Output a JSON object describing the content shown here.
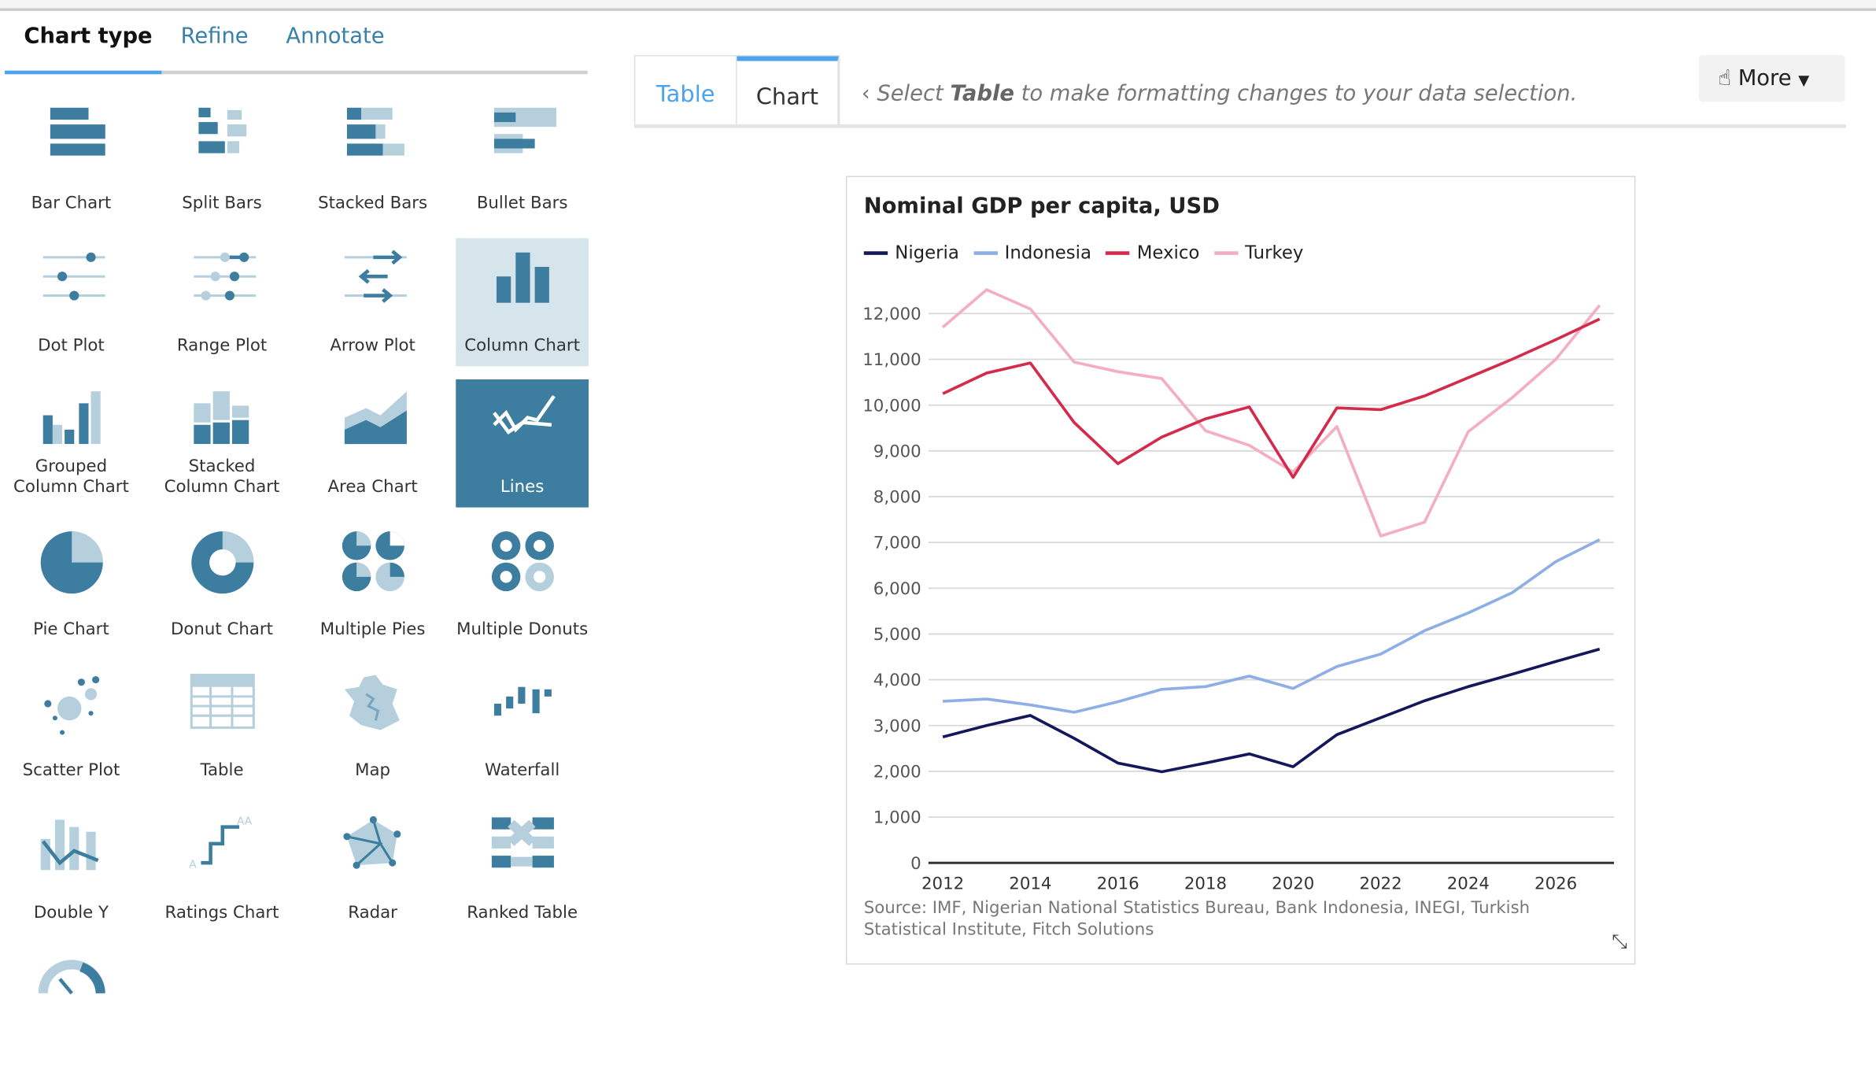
{
  "left_tabs": [
    {
      "label": "Chart type",
      "active": true
    },
    {
      "label": "Refine",
      "active": false
    },
    {
      "label": "Annotate",
      "active": false
    }
  ],
  "chart_types": [
    {
      "label": "Bar Chart",
      "icon": "bar-chart-icon"
    },
    {
      "label": "Split Bars",
      "icon": "split-bars-icon"
    },
    {
      "label": "Stacked Bars",
      "icon": "stacked-bars-icon"
    },
    {
      "label": "Bullet Bars",
      "icon": "bullet-bars-icon"
    },
    {
      "label": "Dot Plot",
      "icon": "dot-plot-icon"
    },
    {
      "label": "Range Plot",
      "icon": "range-plot-icon"
    },
    {
      "label": "Arrow Plot",
      "icon": "arrow-plot-icon"
    },
    {
      "label": "Column Chart",
      "icon": "column-chart-icon",
      "state": "hover"
    },
    {
      "label": "Grouped Column Chart",
      "icon": "grouped-column-icon"
    },
    {
      "label": "Stacked Column Chart",
      "icon": "stacked-column-icon"
    },
    {
      "label": "Area Chart",
      "icon": "area-chart-icon"
    },
    {
      "label": "Lines",
      "icon": "lines-icon",
      "state": "selected"
    },
    {
      "label": "Pie Chart",
      "icon": "pie-chart-icon"
    },
    {
      "label": "Donut Chart",
      "icon": "donut-chart-icon"
    },
    {
      "label": "Multiple Pies",
      "icon": "multiple-pies-icon"
    },
    {
      "label": "Multiple Donuts",
      "icon": "multiple-donuts-icon"
    },
    {
      "label": "Scatter Plot",
      "icon": "scatter-plot-icon"
    },
    {
      "label": "Table",
      "icon": "table-icon"
    },
    {
      "label": "Map",
      "icon": "map-icon"
    },
    {
      "label": "Waterfall",
      "icon": "waterfall-icon"
    },
    {
      "label": "Double Y",
      "icon": "double-y-icon"
    },
    {
      "label": "Ratings Chart",
      "icon": "ratings-chart-icon"
    },
    {
      "label": "Radar",
      "icon": "radar-icon"
    },
    {
      "label": "Ranked Table",
      "icon": "ranked-table-icon"
    },
    {
      "label": "",
      "icon": "gauge-icon"
    }
  ],
  "view_tabs": {
    "table": "Table",
    "chart": "Chart",
    "active": "Chart"
  },
  "hint": {
    "pre": "Select ",
    "bold": "Table",
    "post": " to make formatting changes to your data selection."
  },
  "more_button": "More",
  "colors": {
    "accent": "#4aa3ec",
    "icon_dark": "#3d7ea0",
    "icon_light": "#b5cfdc"
  },
  "chart_data": {
    "type": "line",
    "title": "Nominal GDP per capita, USD",
    "x": [
      2012,
      2013,
      2014,
      2015,
      2016,
      2017,
      2018,
      2019,
      2020,
      2021,
      2022,
      2023,
      2024,
      2025,
      2026,
      2027
    ],
    "xticks": [
      "2012",
      "2014",
      "2016",
      "2018",
      "2020",
      "2022",
      "2024",
      "2026"
    ],
    "yticks": [
      "0",
      "1,000",
      "2,000",
      "3,000",
      "4,000",
      "5,000",
      "6,000",
      "7,000",
      "8,000",
      "9,000",
      "10,000",
      "11,000",
      "12,000"
    ],
    "ylim": [
      0,
      12000
    ],
    "grid": true,
    "legend": "top-left",
    "series": [
      {
        "name": "Nigeria",
        "color": "#14175a",
        "values": [
          2750,
          3000,
          3220,
          2720,
          2180,
          1990,
          2180,
          2380,
          2100,
          2800,
          3170,
          3540,
          3850,
          4120,
          4400,
          4670
        ]
      },
      {
        "name": "Indonesia",
        "color": "#8eaee6",
        "values": [
          3530,
          3580,
          3450,
          3290,
          3520,
          3790,
          3850,
          4080,
          3810,
          4290,
          4560,
          5070,
          5460,
          5900,
          6580,
          7060
        ]
      },
      {
        "name": "Mexico",
        "color": "#d42a4c",
        "values": [
          10250,
          10700,
          10920,
          9620,
          8720,
          9300,
          9700,
          9960,
          8420,
          9940,
          9900,
          10200,
          10600,
          11000,
          11430,
          11880
        ]
      },
      {
        "name": "Turkey",
        "color": "#f3aec2",
        "values": [
          11700,
          12520,
          12100,
          10940,
          10730,
          10580,
          9440,
          9120,
          8540,
          9530,
          7140,
          7440,
          9420,
          10160,
          11000,
          12180
        ]
      }
    ],
    "source": "Source: IMF, Nigerian National Statistics Bureau, Bank Indonesia, INEGI, Turkish Statistical Institute, Fitch Solutions"
  }
}
